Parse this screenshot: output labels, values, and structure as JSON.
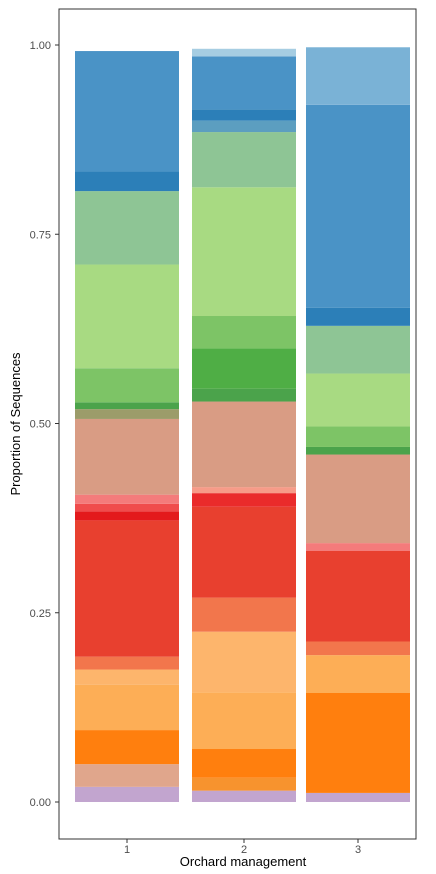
{
  "chart_data": {
    "type": "bar",
    "stacked": true,
    "xlabel": "Orchard management",
    "ylabel": "Proportion of Sequences",
    "categories": [
      "1",
      "2",
      "3"
    ],
    "ylim": [
      0,
      1
    ],
    "y_ticks": [
      "0.00",
      "0.25",
      "0.50",
      "0.75",
      "1.00"
    ],
    "grid": false,
    "legend": "none",
    "series": [
      {
        "color": "#c2a5cf",
        "values": [
          0.02,
          0.015,
          0.012
        ]
      },
      {
        "color": "#e0a68c",
        "values": [
          0.03,
          0.0,
          0.0
        ]
      },
      {
        "color": "#f7932e",
        "values": [
          0.0,
          0.017,
          0.0
        ]
      },
      {
        "color": "#ff7f0e",
        "values": [
          0.045,
          0.038,
          0.132
        ]
      },
      {
        "color": "#fdae56",
        "values": [
          0.06,
          0.075,
          0.05
        ]
      },
      {
        "color": "#fdb56c",
        "values": [
          0.02,
          0.08,
          0.0
        ]
      },
      {
        "color": "#f2764c",
        "values": [
          0.017,
          0.045,
          0.018
        ]
      },
      {
        "color": "#e8402f",
        "values": [
          0.18,
          0.12,
          0.12
        ]
      },
      {
        "color": "#e31a1c",
        "values": [
          0.012,
          0.0,
          0.0
        ]
      },
      {
        "color": "#ea2b2b",
        "values": [
          0.0,
          0.018,
          0.0
        ]
      },
      {
        "color": "#f04c4c",
        "values": [
          0.01,
          0.0,
          0.0
        ]
      },
      {
        "color": "#f47b7b",
        "values": [
          0.012,
          0.0,
          0.01
        ]
      },
      {
        "color": "#f79b88",
        "values": [
          0.0,
          0.008,
          0.0
        ]
      },
      {
        "color": "#d99c84",
        "values": [
          0.1,
          0.113,
          0.117
        ]
      },
      {
        "color": "#9c9c6a",
        "values": [
          0.013,
          0.0,
          0.0
        ]
      },
      {
        "color": "#4ba34b",
        "values": [
          0.009,
          0.017,
          0.01
        ]
      },
      {
        "color": "#4fae45",
        "values": [
          0.0,
          0.053,
          0.0
        ]
      },
      {
        "color": "#7dc466",
        "values": [
          0.045,
          0.043,
          0.027
        ]
      },
      {
        "color": "#a8da82",
        "values": [
          0.137,
          0.17,
          0.07
        ]
      },
      {
        "color": "#8ec595",
        "values": [
          0.097,
          0.073,
          0.063
        ]
      },
      {
        "color": "#5c9ec0",
        "values": [
          0.0,
          0.015,
          0.0
        ]
      },
      {
        "color": "#2c7fb8",
        "values": [
          0.026,
          0.015,
          0.024
        ]
      },
      {
        "color": "#4a93c6",
        "values": [
          0.159,
          0.07,
          0.268
        ]
      },
      {
        "color": "#7ab2d6",
        "values": [
          0.0,
          0.0,
          0.076
        ]
      },
      {
        "color": "#a6cde2",
        "values": [
          0.0,
          0.01,
          0.0
        ]
      }
    ]
  }
}
